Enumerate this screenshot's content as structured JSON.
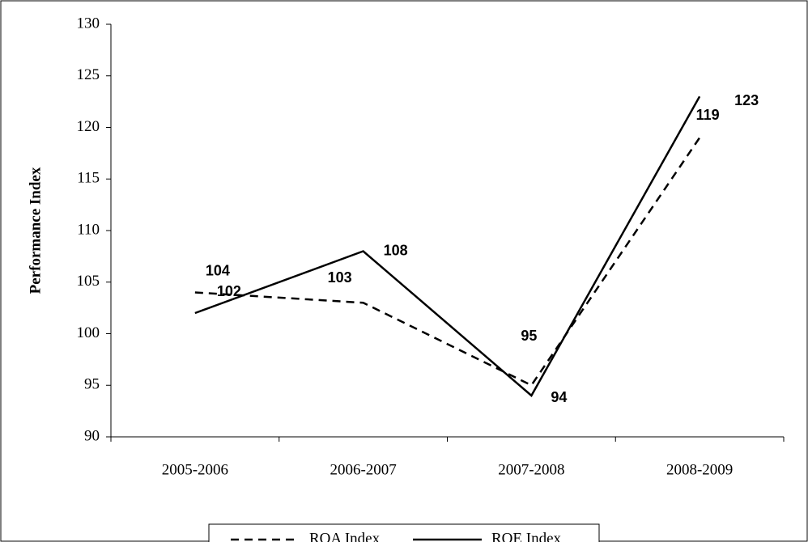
{
  "chart_data": {
    "type": "line",
    "y_label": "Performance Index",
    "categories": [
      "2005-2006",
      "2006-2007",
      "2007-2008",
      "2008-2009"
    ],
    "series": [
      {
        "name": "ROA Index",
        "color": "#000000",
        "dash": true,
        "values": [
          104,
          103,
          95,
          119
        ]
      },
      {
        "name": "ROE Index",
        "color": "#000000",
        "dash": false,
        "values": [
          102,
          108,
          94,
          123
        ]
      }
    ],
    "ylim": [
      90,
      130
    ],
    "yticks": [
      90,
      95,
      100,
      105,
      110,
      115,
      120,
      125,
      130
    ],
    "grid": false
  }
}
